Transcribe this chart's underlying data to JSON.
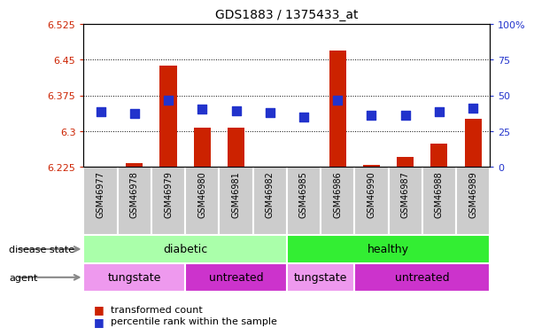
{
  "title": "GDS1883 / 1375433_at",
  "samples": [
    "GSM46977",
    "GSM46978",
    "GSM46979",
    "GSM46980",
    "GSM46981",
    "GSM46982",
    "GSM46985",
    "GSM46986",
    "GSM46990",
    "GSM46987",
    "GSM46988",
    "GSM46989"
  ],
  "red_values": [
    6.226,
    6.232,
    6.438,
    6.308,
    6.308,
    6.226,
    6.226,
    6.469,
    6.229,
    6.245,
    6.274,
    6.325
  ],
  "blue_values": [
    6.34,
    6.336,
    6.365,
    6.346,
    6.342,
    6.339,
    6.33,
    6.365,
    6.334,
    6.334,
    6.34,
    6.348
  ],
  "ymin": 6.225,
  "ymax": 6.525,
  "yticks_left": [
    6.225,
    6.3,
    6.375,
    6.45,
    6.525
  ],
  "yticks_right_pct": [
    0,
    25,
    50,
    75,
    100
  ],
  "disease_state_groups": [
    {
      "label": "diabetic",
      "start": 0,
      "end": 5,
      "color": "#aaffaa"
    },
    {
      "label": "healthy",
      "start": 6,
      "end": 11,
      "color": "#33ee33"
    }
  ],
  "agent_groups": [
    {
      "label": "tungstate",
      "start": 0,
      "end": 2,
      "color": "#ee99ee"
    },
    {
      "label": "untreated",
      "start": 3,
      "end": 5,
      "color": "#cc33cc"
    },
    {
      "label": "tungstate",
      "start": 6,
      "end": 7,
      "color": "#ee99ee"
    },
    {
      "label": "untreated",
      "start": 8,
      "end": 11,
      "color": "#cc33cc"
    }
  ],
  "bar_color": "#cc2200",
  "dot_color": "#2233cc",
  "bar_width": 0.5,
  "dot_size": 45,
  "tick_color_left": "#cc2200",
  "tick_color_right": "#2233cc",
  "xtick_bg_color": "#cccccc",
  "legend_items": [
    "transformed count",
    "percentile rank within the sample"
  ],
  "legend_colors": [
    "#cc2200",
    "#2233cc"
  ],
  "row_label_disease": "disease state",
  "row_label_agent": "agent"
}
